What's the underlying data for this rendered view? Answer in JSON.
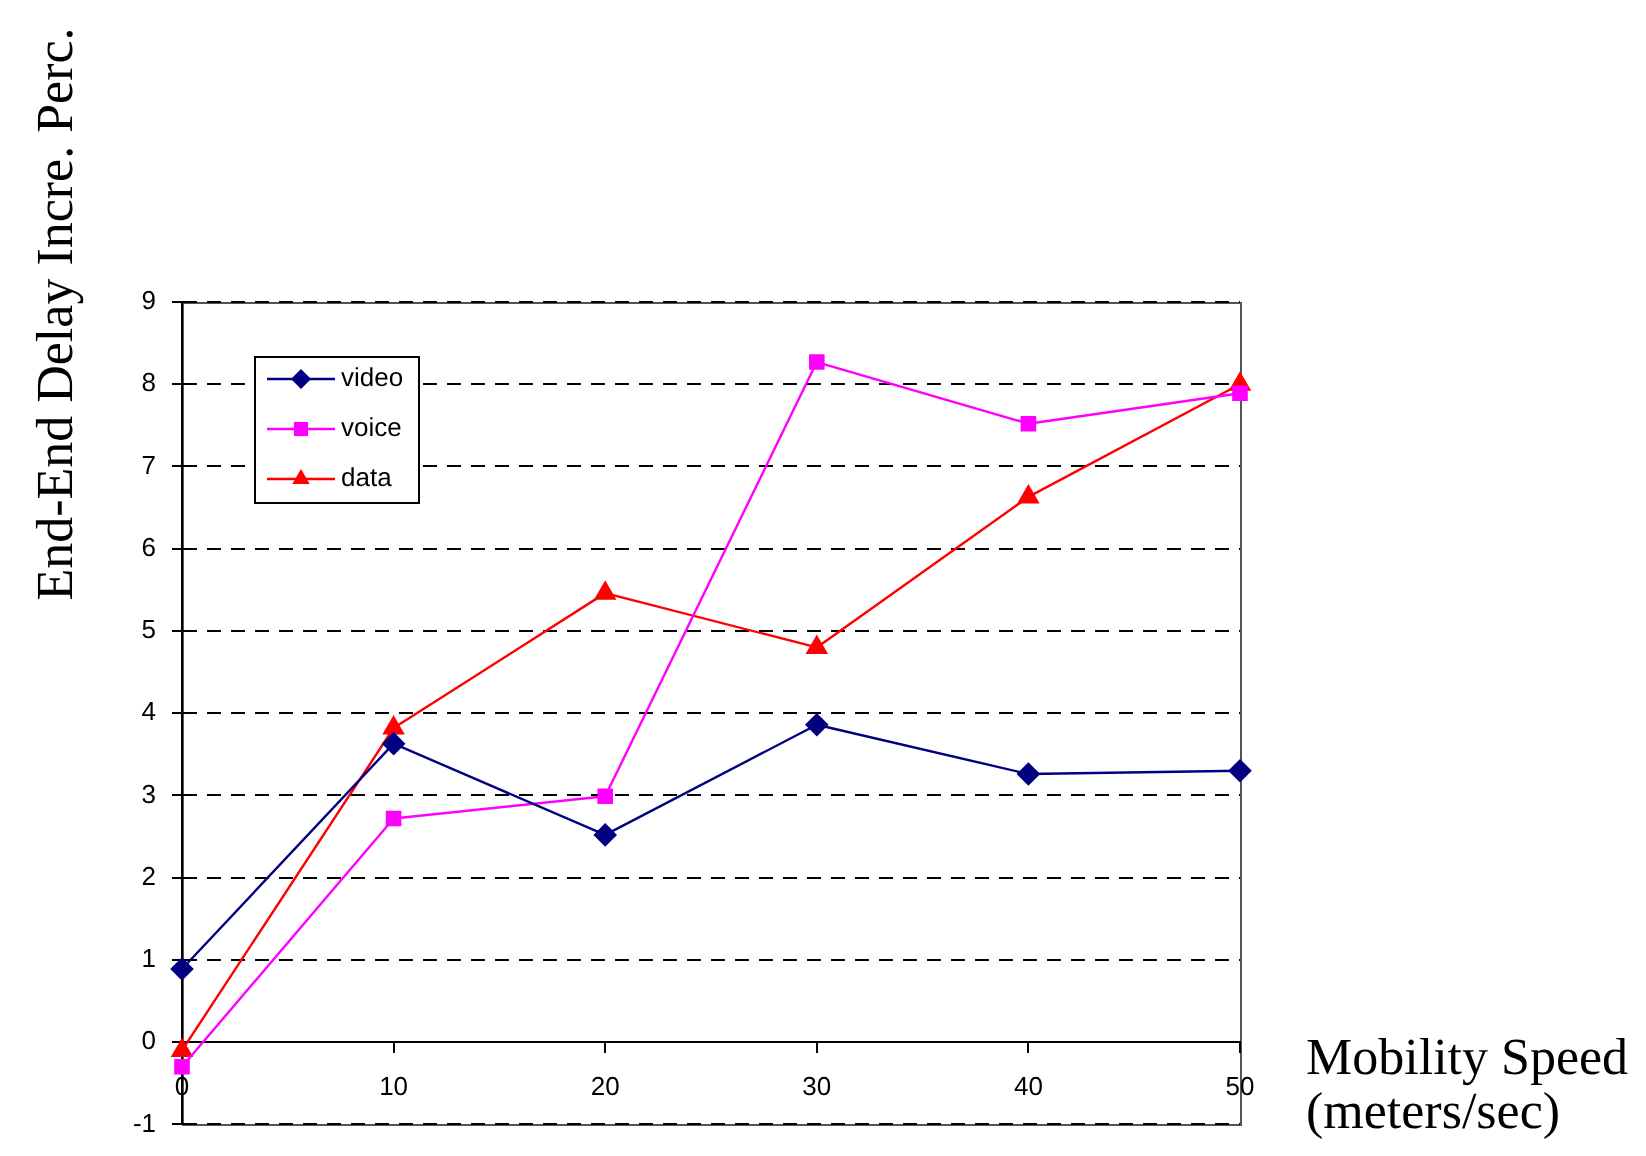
{
  "chart_data": {
    "type": "line",
    "xlabel": "Mobility Speed (meters/sec)",
    "ylabel": "End-End Delay Incre. Perc.",
    "x": [
      0,
      10,
      20,
      30,
      40,
      50
    ],
    "series": [
      {
        "name": "video",
        "color": "#000080",
        "marker": "diamond",
        "values": [
          0.89,
          3.63,
          2.52,
          3.86,
          3.26,
          3.3
        ]
      },
      {
        "name": "voice",
        "color": "#ff00ff",
        "marker": "square",
        "values": [
          -0.3,
          2.72,
          2.99,
          8.27,
          7.52,
          7.89
        ]
      },
      {
        "name": "data",
        "color": "#ff0000",
        "marker": "triangle",
        "values": [
          -0.1,
          3.82,
          5.46,
          4.8,
          6.63,
          8.0
        ]
      }
    ],
    "xlim": [
      0,
      50
    ],
    "xticks": [
      0,
      10,
      20,
      30,
      40,
      50
    ],
    "ylim": [
      -1,
      9
    ],
    "yticks": [
      -1,
      0,
      1,
      2,
      3,
      4,
      5,
      6,
      7,
      8,
      9
    ],
    "grid": "y",
    "legend": "top left"
  }
}
